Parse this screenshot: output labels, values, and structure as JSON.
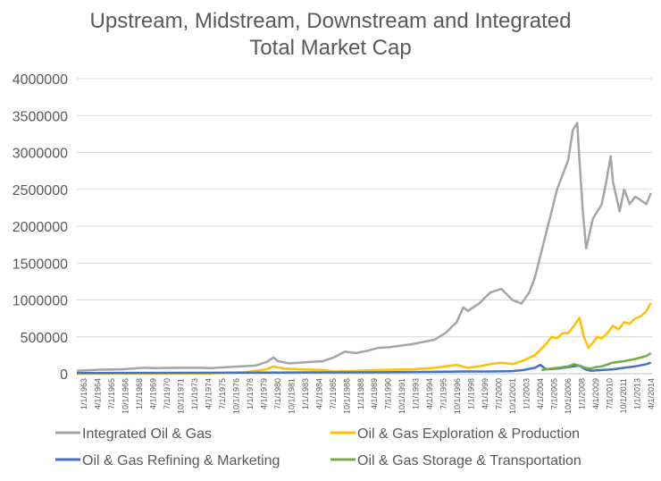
{
  "chart_data": {
    "type": "line",
    "title": [
      "Upstream, Midstream, Downstream and Integrated",
      "Total Market Cap"
    ],
    "xlabel": "",
    "ylabel": "",
    "ylim": [
      0,
      4000000
    ],
    "y_ticks": [
      "0",
      "500000",
      "1000000",
      "1500000",
      "2000000",
      "2500000",
      "3000000",
      "3500000",
      "4000000"
    ],
    "x_tick_labels": [
      "1/1/1963",
      "4/1/1964",
      "7/1/1965",
      "10/1/1966",
      "1/1/1968",
      "4/1/1969",
      "7/1/1970",
      "10/1/1971",
      "1/1/1973",
      "4/1/1974",
      "7/1/1975",
      "10/1/1976",
      "1/1/1978",
      "4/1/1979",
      "7/1/1980",
      "10/1/1981",
      "1/1/1983",
      "4/1/1984",
      "7/1/1985",
      "10/1/1986",
      "1/1/1988",
      "4/1/1989",
      "7/1/1990",
      "10/1/1991",
      "1/1/1993",
      "4/1/1994",
      "7/1/1995",
      "10/1/1996",
      "1/1/1998",
      "4/1/1999",
      "7/1/2000",
      "10/1/2001",
      "1/1/2003",
      "4/1/2004",
      "7/1/2005",
      "10/1/2006",
      "1/1/2008",
      "4/1/2009",
      "7/1/2010",
      "10/1/2011",
      "1/1/2013",
      "4/1/2014"
    ],
    "x_range": [
      1963.0,
      2014.5
    ],
    "legend_position": "bottom",
    "series": [
      {
        "name": "Integrated Oil & Gas",
        "color": "#a5a5a5",
        "x": [
          1963,
          1965,
          1967,
          1968,
          1969,
          1970,
          1972,
          1974,
          1975,
          1977,
          1979,
          1980,
          1980.6,
          1981,
          1982,
          1983,
          1984,
          1985,
          1986,
          1987,
          1988,
          1989,
          1990,
          1991,
          1992,
          1993,
          1994,
          1995,
          1996,
          1997,
          1997.6,
          1998,
          1999,
          2000,
          2001,
          2002,
          2002.8,
          2003.5,
          2004,
          2004.5,
          2005,
          2005.5,
          2006,
          2006.5,
          2007,
          2007.4,
          2007.8,
          2008,
          2008.3,
          2008.6,
          2008.9,
          2009.2,
          2009.6,
          2010,
          2010.4,
          2010.8,
          2011,
          2011.3,
          2011.6,
          2012,
          2012.5,
          2013,
          2013.5,
          2014,
          2014.4
        ],
        "y": [
          40000,
          55000,
          60000,
          70000,
          80000,
          75000,
          80000,
          80000,
          75000,
          95000,
          110000,
          160000,
          220000,
          170000,
          140000,
          150000,
          160000,
          170000,
          220000,
          300000,
          280000,
          310000,
          350000,
          360000,
          380000,
          400000,
          430000,
          460000,
          550000,
          700000,
          900000,
          850000,
          950000,
          1100000,
          1150000,
          1000000,
          950000,
          1100000,
          1300000,
          1600000,
          1900000,
          2200000,
          2500000,
          2700000,
          2900000,
          3300000,
          3400000,
          2900000,
          2200000,
          1700000,
          1900000,
          2100000,
          2200000,
          2300000,
          2600000,
          2950000,
          2600000,
          2400000,
          2200000,
          2500000,
          2300000,
          2400000,
          2350000,
          2300000,
          2450000
        ]
      },
      {
        "name": "Oil & Gas Exploration & Production",
        "color": "#ffc000",
        "x": [
          1963,
          1975,
          1978,
          1980,
          1980.6,
          1981.5,
          1983,
          1985,
          1986,
          1988,
          1990,
          1993,
          1995,
          1997,
          1998,
          1999,
          2000,
          2001,
          2002,
          2003,
          2004,
          2005,
          2005.5,
          2006,
          2006.5,
          2007,
          2007.5,
          2008,
          2008.4,
          2008.8,
          2009.2,
          2009.6,
          2010,
          2010.5,
          2011,
          2011.5,
          2012,
          2012.5,
          2013,
          2013.5,
          2014,
          2014.4
        ],
        "y": [
          0,
          5000,
          20000,
          60000,
          100000,
          70000,
          60000,
          50000,
          30000,
          40000,
          50000,
          60000,
          80000,
          120000,
          80000,
          100000,
          130000,
          150000,
          130000,
          180000,
          250000,
          400000,
          500000,
          480000,
          550000,
          550000,
          650000,
          760000,
          500000,
          350000,
          420000,
          500000,
          480000,
          550000,
          650000,
          600000,
          700000,
          680000,
          750000,
          780000,
          850000,
          960000
        ]
      },
      {
        "name": "Oil & Gas Refining & Marketing",
        "color": "#4472c4",
        "x": [
          1963,
          1980,
          1984,
          1990,
          1995,
          1998,
          2000,
          2002,
          2003,
          2004,
          2004.5,
          2005,
          2006,
          2007,
          2008,
          2008.5,
          2009,
          2010,
          2011,
          2012,
          2013,
          2014,
          2014.4
        ],
        "y": [
          10000,
          15000,
          18000,
          20000,
          25000,
          30000,
          30000,
          35000,
          50000,
          80000,
          120000,
          60000,
          70000,
          90000,
          110000,
          60000,
          40000,
          50000,
          60000,
          80000,
          100000,
          130000,
          150000
        ]
      },
      {
        "name": "Oil & Gas Storage & Transportation",
        "color": "#70ad47",
        "x": [
          2004.6,
          2005,
          2006,
          2007,
          2007.5,
          2008,
          2008.5,
          2009,
          2009.5,
          2010,
          2011,
          2012,
          2013,
          2014,
          2014.4
        ],
        "y": [
          50000,
          60000,
          80000,
          100000,
          130000,
          110000,
          80000,
          70000,
          90000,
          100000,
          150000,
          170000,
          200000,
          240000,
          280000
        ]
      }
    ]
  }
}
